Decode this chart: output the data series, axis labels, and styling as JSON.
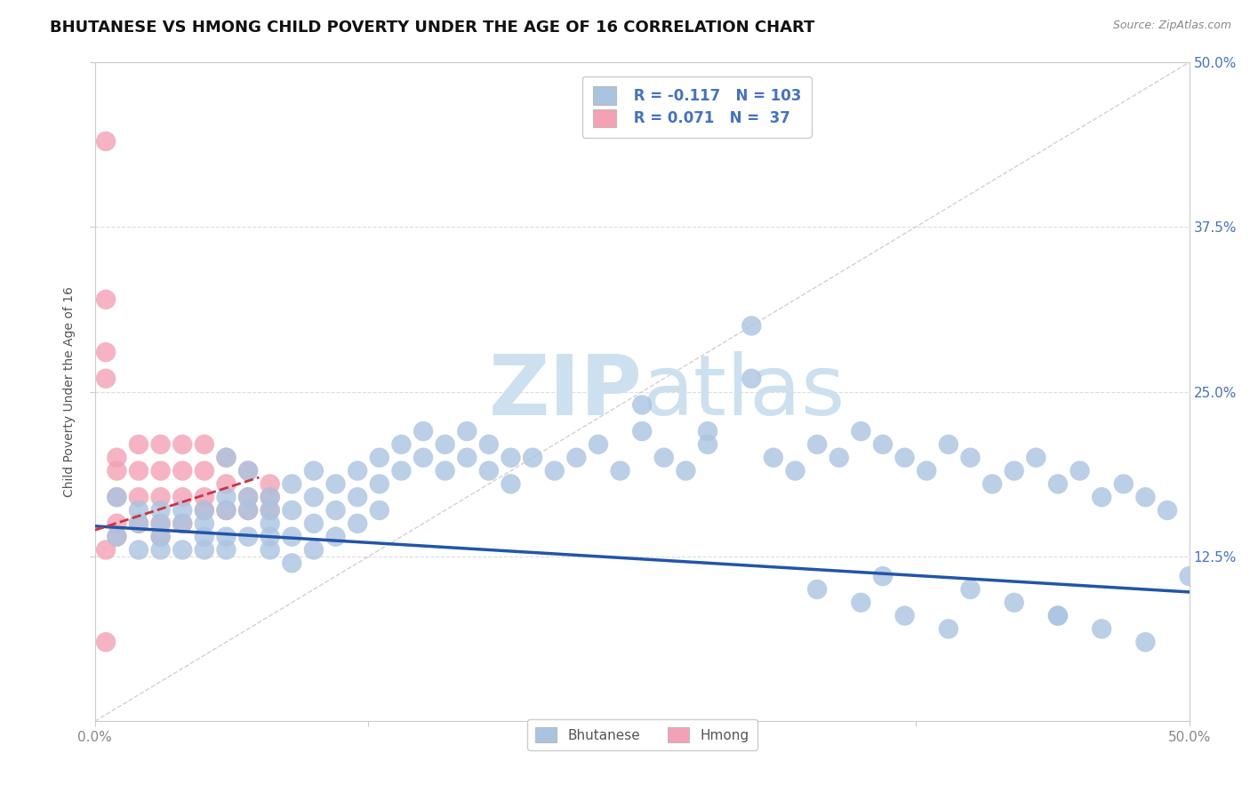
{
  "title": "BHUTANESE VS HMONG CHILD POVERTY UNDER THE AGE OF 16 CORRELATION CHART",
  "source": "Source: ZipAtlas.com",
  "ylabel": "Child Poverty Under the Age of 16",
  "xlim": [
    0.0,
    0.5
  ],
  "ylim": [
    0.0,
    0.5
  ],
  "xtick_vals": [
    0.0,
    0.125,
    0.25,
    0.375,
    0.5
  ],
  "xtick_labels_outer": [
    "0.0%",
    "50.0%"
  ],
  "ytick_vals": [
    0.125,
    0.25,
    0.375,
    0.5
  ],
  "ytick_labels_right": [
    "12.5%",
    "25.0%",
    "37.5%",
    "50.0%"
  ],
  "bhutanese_face": "#aac4e0",
  "bhutanese_edge": "#aac4e0",
  "hmong_face": "#f4a0b5",
  "hmong_edge": "#f4a0b5",
  "trend_blue_color": "#2255aa",
  "trend_pink_color": "#cc3344",
  "diagonal_color": "#cccccc",
  "grid_color": "#dddddd",
  "bg_color": "#ffffff",
  "watermark_color": "#cce0f0",
  "title_color": "#111111",
  "axis_label_color": "#555555",
  "tick_color": "#888888",
  "right_tick_color": "#4472c4",
  "legend_text_color": "#4472c4",
  "R_blue": "-0.117",
  "N_blue": "103",
  "R_pink": "0.071",
  "N_pink": "37",
  "title_fontsize": 13,
  "label_fontsize": 10,
  "tick_fontsize": 11,
  "legend_fontsize": 12,
  "source_fontsize": 9,
  "blue_trend_x": [
    0.0,
    0.5
  ],
  "blue_trend_y": [
    0.148,
    0.098
  ],
  "pink_trend_x": [
    0.0,
    0.075
  ],
  "pink_trend_y": [
    0.145,
    0.185
  ],
  "bhutanese_x": [
    0.01,
    0.01,
    0.02,
    0.02,
    0.02,
    0.03,
    0.03,
    0.03,
    0.03,
    0.04,
    0.04,
    0.04,
    0.05,
    0.05,
    0.05,
    0.05,
    0.06,
    0.06,
    0.06,
    0.06,
    0.06,
    0.07,
    0.07,
    0.07,
    0.07,
    0.08,
    0.08,
    0.08,
    0.08,
    0.08,
    0.09,
    0.09,
    0.09,
    0.09,
    0.1,
    0.1,
    0.1,
    0.1,
    0.11,
    0.11,
    0.11,
    0.12,
    0.12,
    0.12,
    0.13,
    0.13,
    0.13,
    0.14,
    0.14,
    0.15,
    0.15,
    0.16,
    0.16,
    0.17,
    0.17,
    0.18,
    0.18,
    0.19,
    0.19,
    0.2,
    0.21,
    0.22,
    0.23,
    0.24,
    0.25,
    0.26,
    0.27,
    0.28,
    0.3,
    0.31,
    0.32,
    0.33,
    0.34,
    0.35,
    0.36,
    0.37,
    0.38,
    0.39,
    0.4,
    0.41,
    0.42,
    0.43,
    0.44,
    0.45,
    0.46,
    0.47,
    0.48,
    0.49,
    0.5,
    0.33,
    0.35,
    0.37,
    0.39,
    0.42,
    0.44,
    0.46,
    0.48,
    0.36,
    0.4,
    0.44,
    0.25,
    0.28,
    0.3
  ],
  "bhutanese_y": [
    0.17,
    0.14,
    0.16,
    0.13,
    0.15,
    0.15,
    0.13,
    0.16,
    0.14,
    0.15,
    0.13,
    0.16,
    0.14,
    0.16,
    0.13,
    0.15,
    0.2,
    0.17,
    0.14,
    0.16,
    0.13,
    0.19,
    0.16,
    0.14,
    0.17,
    0.17,
    0.15,
    0.13,
    0.16,
    0.14,
    0.18,
    0.16,
    0.14,
    0.12,
    0.19,
    0.17,
    0.15,
    0.13,
    0.18,
    0.16,
    0.14,
    0.19,
    0.17,
    0.15,
    0.2,
    0.18,
    0.16,
    0.21,
    0.19,
    0.22,
    0.2,
    0.21,
    0.19,
    0.22,
    0.2,
    0.21,
    0.19,
    0.2,
    0.18,
    0.2,
    0.19,
    0.2,
    0.21,
    0.19,
    0.22,
    0.2,
    0.19,
    0.21,
    0.3,
    0.2,
    0.19,
    0.21,
    0.2,
    0.22,
    0.21,
    0.2,
    0.19,
    0.21,
    0.2,
    0.18,
    0.19,
    0.2,
    0.18,
    0.19,
    0.17,
    0.18,
    0.17,
    0.16,
    0.11,
    0.1,
    0.09,
    0.08,
    0.07,
    0.09,
    0.08,
    0.07,
    0.06,
    0.11,
    0.1,
    0.08,
    0.24,
    0.22,
    0.26
  ],
  "hmong_x": [
    0.005,
    0.005,
    0.005,
    0.005,
    0.01,
    0.01,
    0.01,
    0.01,
    0.01,
    0.02,
    0.02,
    0.02,
    0.02,
    0.03,
    0.03,
    0.03,
    0.03,
    0.03,
    0.04,
    0.04,
    0.04,
    0.04,
    0.05,
    0.05,
    0.05,
    0.05,
    0.06,
    0.06,
    0.06,
    0.07,
    0.07,
    0.07,
    0.08,
    0.08,
    0.08,
    0.005,
    0.005
  ],
  "hmong_y": [
    0.44,
    0.32,
    0.28,
    0.26,
    0.2,
    0.19,
    0.17,
    0.15,
    0.14,
    0.21,
    0.19,
    0.17,
    0.15,
    0.21,
    0.19,
    0.17,
    0.15,
    0.14,
    0.21,
    0.19,
    0.17,
    0.15,
    0.21,
    0.19,
    0.17,
    0.16,
    0.2,
    0.18,
    0.16,
    0.19,
    0.17,
    0.16,
    0.18,
    0.17,
    0.16,
    0.13,
    0.06
  ]
}
